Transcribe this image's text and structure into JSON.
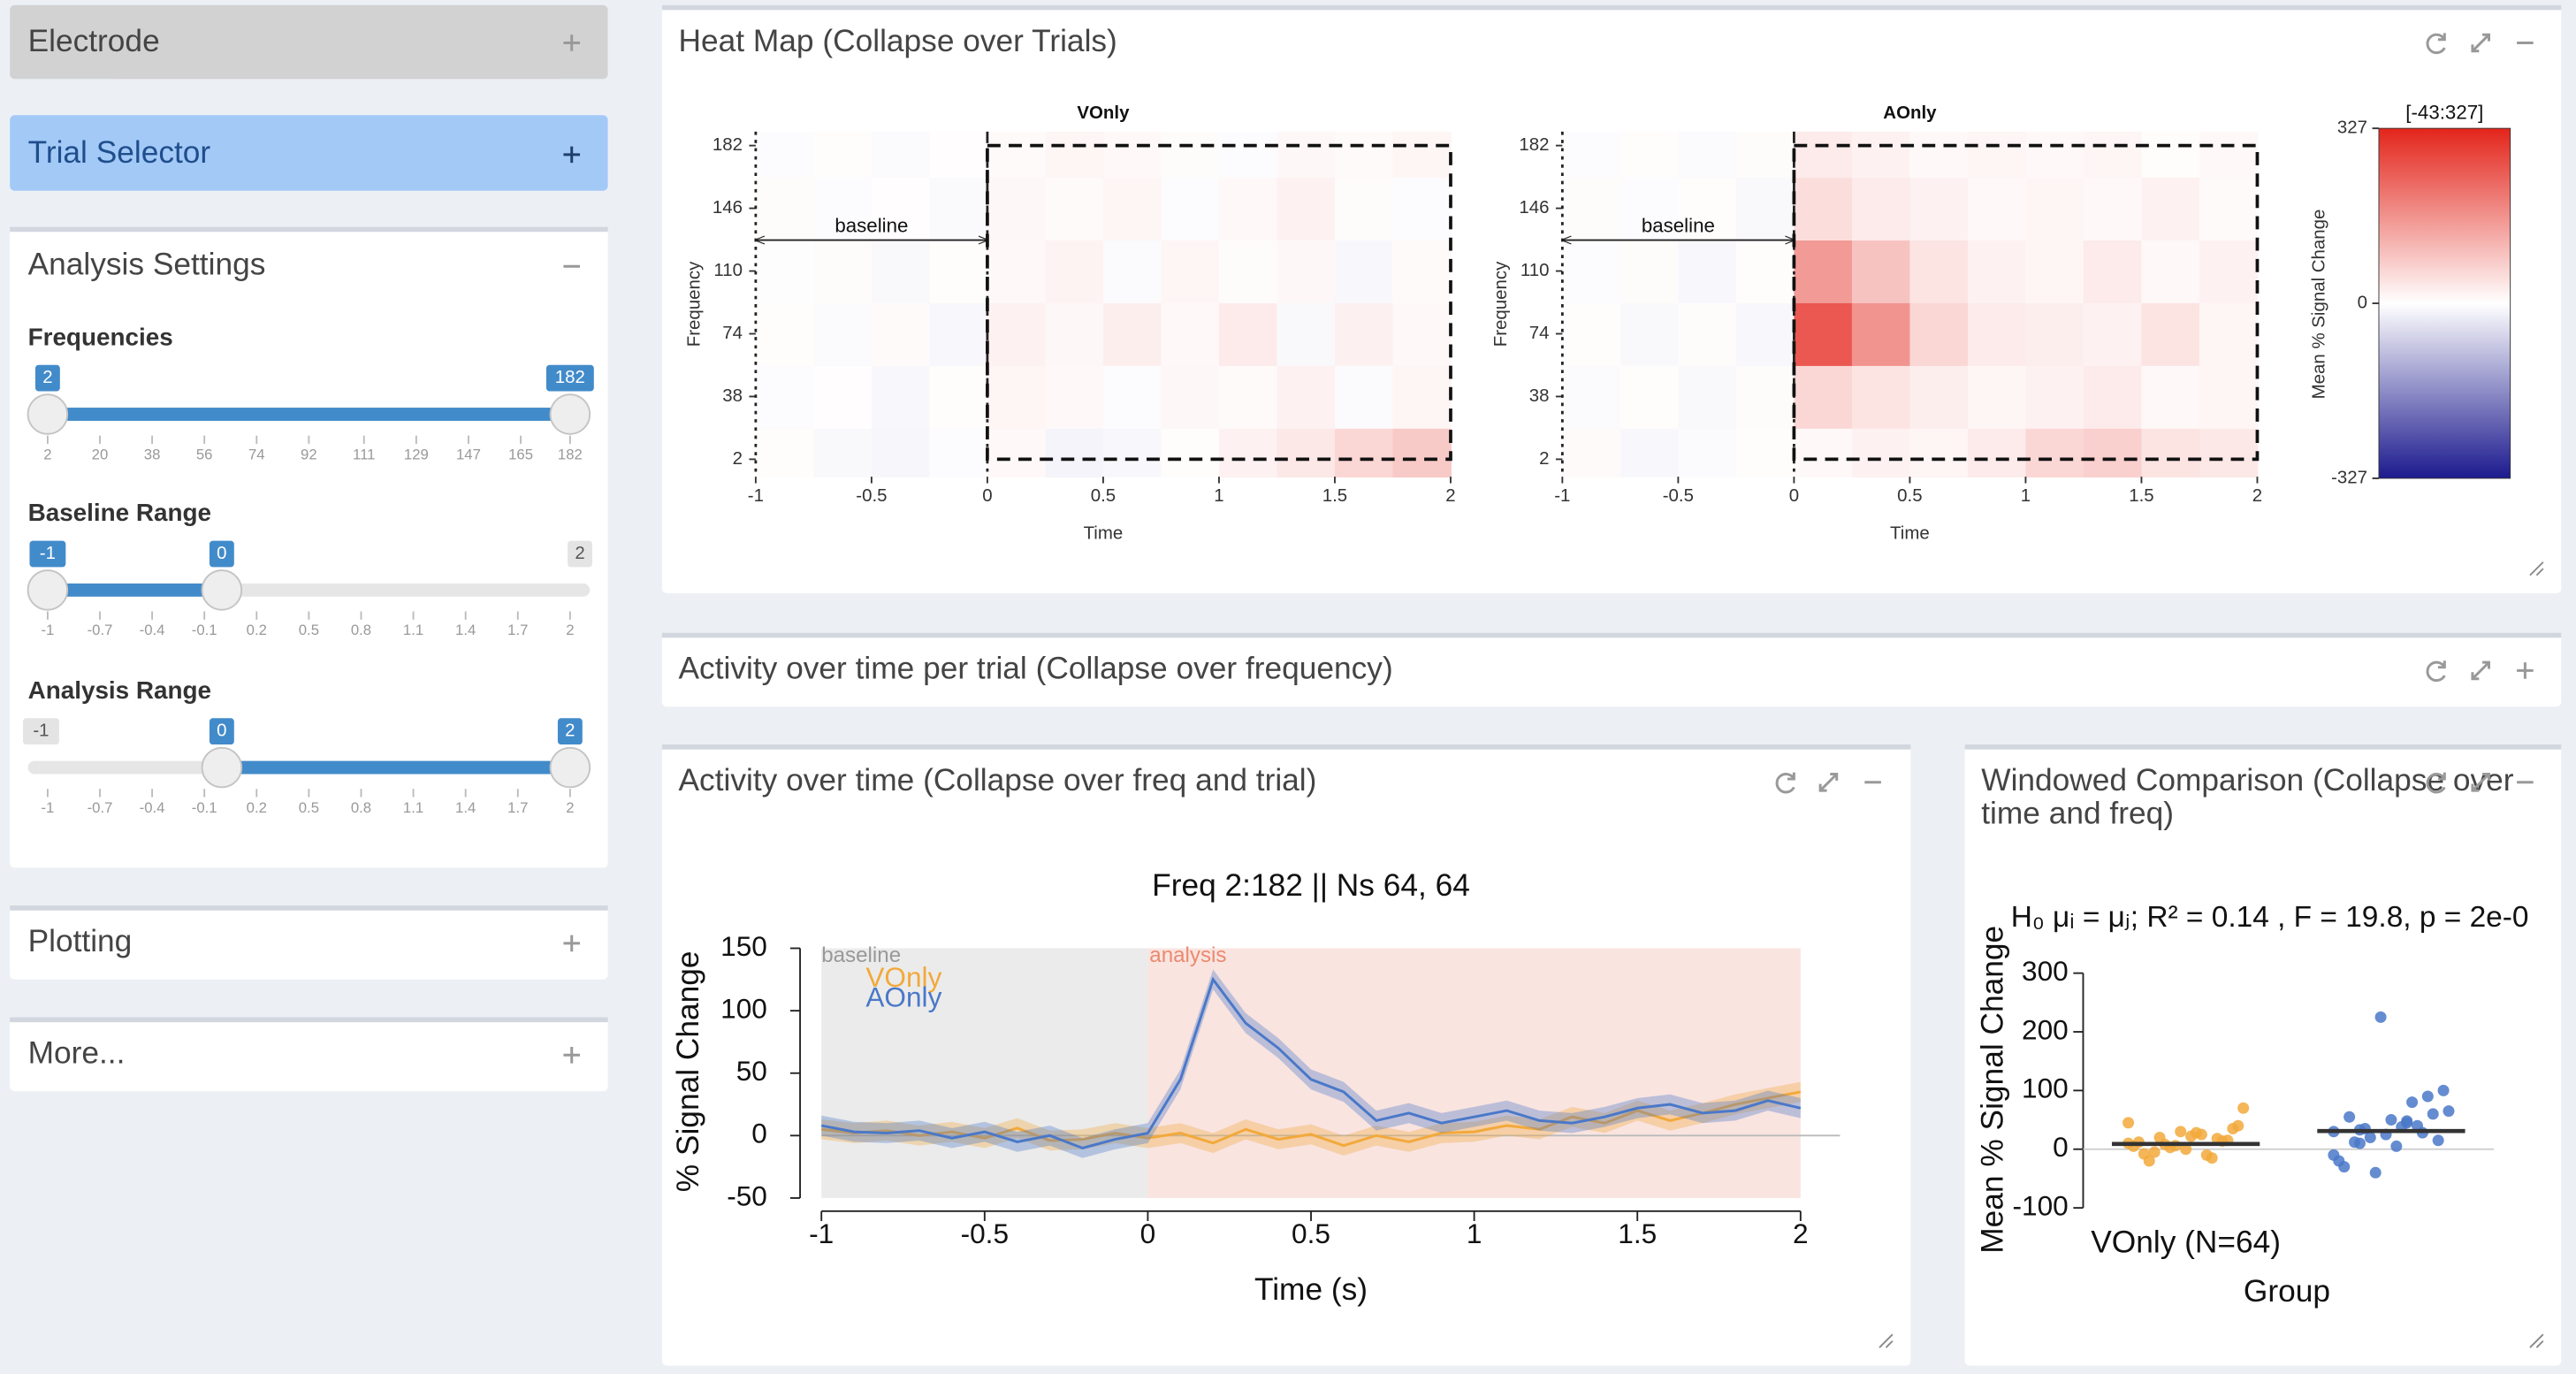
{
  "sidebar": {
    "electrode": "Electrode",
    "trial_selector": "Trial Selector",
    "analysis_settings": {
      "title": "Analysis Settings",
      "frequencies": {
        "label": "Frequencies",
        "min": 2,
        "max": 182,
        "value": [
          2,
          182
        ],
        "ticks": [
          2,
          20,
          38,
          56,
          74,
          92,
          111,
          129,
          147,
          165,
          182
        ]
      },
      "baseline_range": {
        "label": "Baseline Range",
        "min": -1,
        "max": 2,
        "value": [
          -1,
          0
        ],
        "ticks": [
          -1,
          -0.7,
          -0.4,
          -0.1,
          0.2,
          0.5,
          0.8,
          1.1,
          1.4,
          1.7,
          2
        ]
      },
      "analysis_range": {
        "label": "Analysis Range",
        "min": -1,
        "max": 2,
        "value": [
          0,
          2
        ],
        "ticks": [
          -1,
          -0.7,
          -0.4,
          -0.1,
          0.2,
          0.5,
          0.8,
          1.1,
          1.4,
          1.7,
          2
        ]
      }
    },
    "plotting": "Plotting",
    "more": "More..."
  },
  "heatmap": {
    "title": "Heat Map (Collapse over Trials)",
    "x_label": "Time",
    "y_label": "Frequency",
    "baseline_label": "baseline",
    "xlim": [
      -1,
      2
    ],
    "xticks": [
      -1,
      -0.5,
      0,
      0.5,
      1,
      1.5,
      2
    ],
    "ylim": [
      -8,
      190
    ],
    "yticks": [
      2,
      38,
      74,
      110,
      146,
      182
    ],
    "time_bins": [
      -1,
      -0.75,
      -0.5,
      -0.25,
      0,
      0.25,
      0.5,
      0.75,
      1,
      1.25,
      1.5,
      1.75,
      2
    ],
    "frequencies": [
      2,
      38,
      74,
      110,
      146,
      182
    ],
    "colormap": [
      "#1c1a8e",
      "#ffffff",
      "#e3251b"
    ],
    "maps": [
      {
        "name": "VOnly",
        "values": [
          [
            5,
            -8,
            -12,
            -5,
            10,
            -15,
            -10,
            5,
            20,
            35,
            60,
            80
          ],
          [
            -5,
            3,
            -10,
            5,
            15,
            10,
            -5,
            12,
            8,
            20,
            -6,
            15
          ],
          [
            4,
            -6,
            8,
            -10,
            20,
            12,
            25,
            10,
            30,
            -8,
            22,
            10
          ],
          [
            -3,
            6,
            -8,
            4,
            10,
            18,
            -6,
            14,
            6,
            12,
            -10,
            8
          ],
          [
            6,
            -4,
            3,
            -7,
            12,
            8,
            15,
            -5,
            10,
            20,
            6,
            -4
          ],
          [
            -4,
            5,
            -6,
            3,
            8,
            15,
            10,
            6,
            -5,
            12,
            8,
            14
          ]
        ]
      },
      {
        "name": "AOnly",
        "values": [
          [
            8,
            -10,
            -6,
            4,
            10,
            20,
            15,
            30,
            60,
            70,
            40,
            35
          ],
          [
            -6,
            5,
            -8,
            6,
            60,
            40,
            25,
            15,
            20,
            30,
            10,
            15
          ],
          [
            5,
            -8,
            6,
            -10,
            250,
            160,
            60,
            30,
            25,
            20,
            40,
            15
          ],
          [
            -4,
            6,
            -10,
            5,
            150,
            90,
            40,
            20,
            15,
            30,
            10,
            20
          ],
          [
            6,
            -5,
            4,
            -8,
            50,
            30,
            20,
            10,
            15,
            10,
            20,
            8
          ],
          [
            -5,
            4,
            -6,
            6,
            30,
            20,
            10,
            15,
            10,
            15,
            5,
            10
          ]
        ]
      }
    ],
    "colorbar": {
      "title": "[-43:327]",
      "label": "Mean % Signal Change",
      "lim": [
        -327,
        327
      ],
      "ticks": [
        327,
        0,
        -327
      ]
    }
  },
  "activity_per_trial": {
    "title": "Activity over time per trial (Collapse over frequency)"
  },
  "activity_over_time": {
    "title": "Activity over time (Collapse over freq and trial)",
    "chart_title": "Freq 2:182 || Ns 64, 64",
    "x_label": "Time (s)",
    "y_label": "% Signal Change",
    "region_labels": [
      "baseline",
      "analysis"
    ],
    "xlim": [
      -1,
      2
    ],
    "xticks": [
      -1,
      -0.5,
      0,
      0.5,
      1,
      1.5,
      2
    ],
    "ylim": [
      -50,
      150
    ],
    "yticks": [
      -50,
      0,
      50,
      100,
      150
    ],
    "x": [
      -1,
      -0.9,
      -0.8,
      -0.7,
      -0.6,
      -0.5,
      -0.4,
      -0.3,
      -0.2,
      -0.1,
      0,
      0.1,
      0.2,
      0.3,
      0.4,
      0.5,
      0.6,
      0.7,
      0.8,
      0.9,
      1,
      1.1,
      1.2,
      1.3,
      1.4,
      1.5,
      1.6,
      1.7,
      1.8,
      1.9,
      2
    ],
    "series": [
      {
        "name": "VOnly",
        "color": "#f2a93b",
        "se": 8,
        "values": [
          5,
          2,
          4,
          0,
          3,
          -2,
          6,
          -4,
          -3,
          2,
          -2,
          2,
          -6,
          5,
          -3,
          1,
          -8,
          0,
          -5,
          2,
          3,
          8,
          5,
          15,
          10,
          20,
          12,
          18,
          25,
          30,
          35
        ]
      },
      {
        "name": "AOnly",
        "color": "#4a78c8",
        "se": 8,
        "values": [
          8,
          3,
          2,
          4,
          -2,
          3,
          -5,
          0,
          -10,
          -3,
          2,
          45,
          125,
          90,
          70,
          45,
          35,
          12,
          18,
          10,
          15,
          20,
          12,
          10,
          15,
          22,
          25,
          18,
          20,
          28,
          22
        ]
      }
    ]
  },
  "windowed_comparison": {
    "title_lines": [
      "Windowed Comparison (Collapse over",
      "time and freq)"
    ],
    "stats": "H₀ μᵢ = μⱼ; R² = 0.14 , F = 19.8, p = 2e-0",
    "y_label": "Mean % Signal Change",
    "x_label": "Group",
    "category_labels": [
      "VOnly (N=64)",
      null
    ],
    "ylim": [
      -128,
      320
    ],
    "yticks": [
      -100,
      0,
      100,
      200,
      300
    ],
    "groups": [
      {
        "color": "#f2a93b",
        "mean": 9,
        "values": [
          10,
          25,
          -5,
          15,
          30,
          5,
          -10,
          20,
          35,
          0,
          12,
          -15,
          8,
          40,
          22,
          -8,
          18,
          3,
          70,
          28,
          -20,
          14,
          6,
          45
        ]
      },
      {
        "color": "#4a78c8",
        "mean": 31,
        "values": [
          30,
          45,
          10,
          60,
          25,
          -20,
          80,
          35,
          15,
          50,
          -30,
          40,
          20,
          100,
          5,
          55,
          28,
          -40,
          65,
          38,
          12,
          90,
          225,
          -10,
          48,
          33
        ]
      }
    ]
  }
}
